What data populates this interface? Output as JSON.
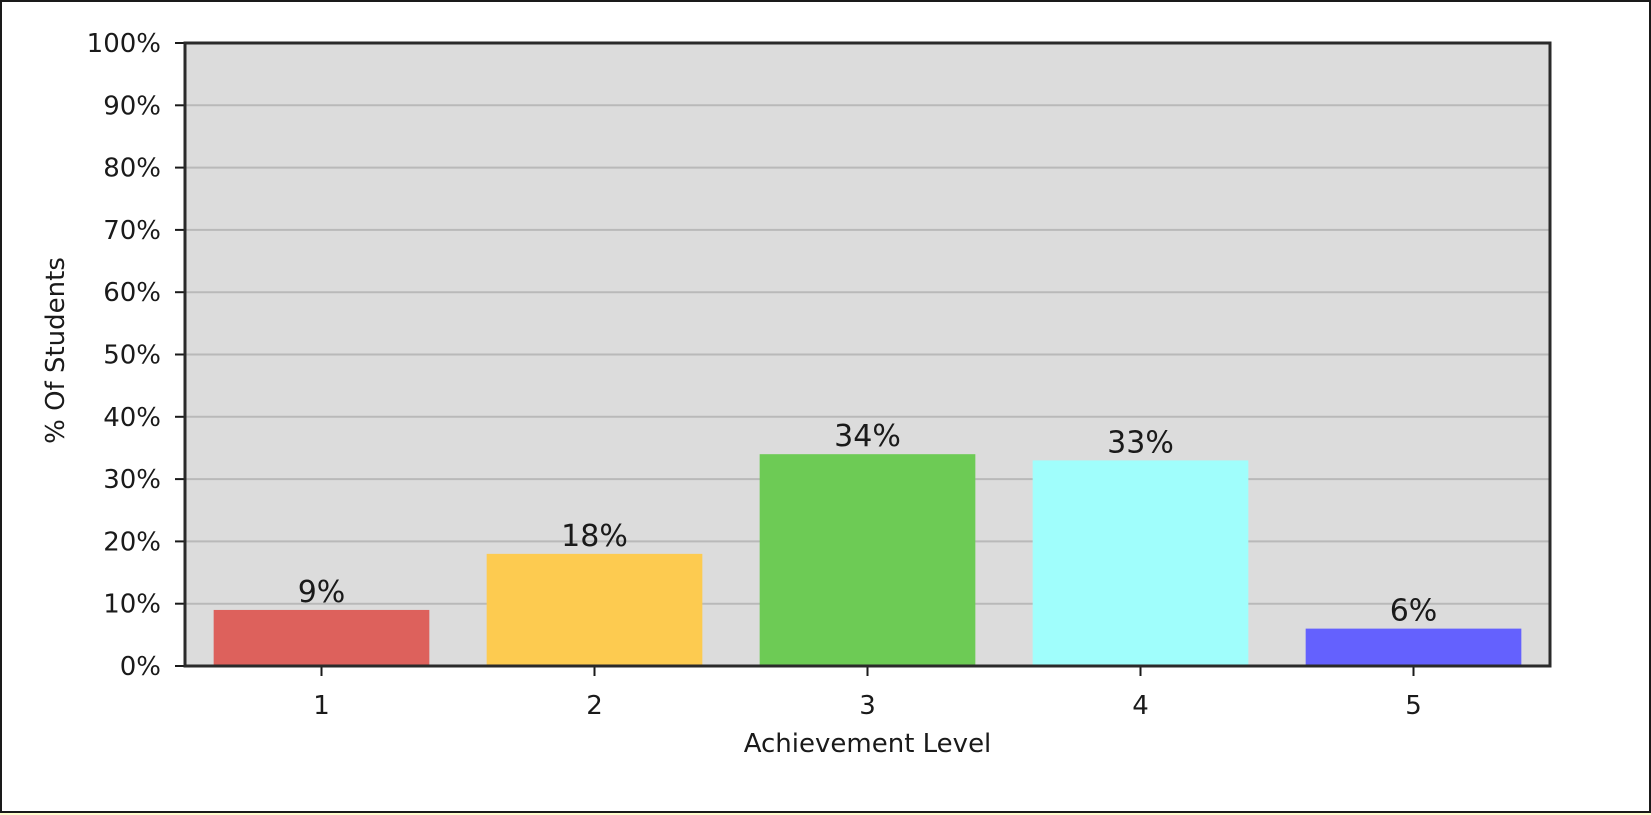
{
  "chart_data": {
    "type": "bar",
    "title": "",
    "xlabel": "Achievement Level",
    "ylabel": "% Of Students",
    "categories": [
      "1",
      "2",
      "3",
      "4",
      "5"
    ],
    "values": [
      9,
      18,
      34,
      33,
      6
    ],
    "value_labels": [
      "9%",
      "18%",
      "34%",
      "33%",
      "6%"
    ],
    "colors": [
      "#dd615c",
      "#fdcb50",
      "#6dcb55",
      "#a0fefc",
      "#6461fe"
    ],
    "ylim": [
      0,
      100
    ],
    "yticks": [
      0,
      10,
      20,
      30,
      40,
      50,
      60,
      70,
      80,
      90,
      100
    ],
    "ytick_labels": [
      "0%",
      "10%",
      "20%",
      "30%",
      "40%",
      "50%",
      "60%",
      "70%",
      "80%",
      "90%",
      "100%"
    ],
    "grid": true,
    "legend": "none",
    "plot_background": "#dcdcdc",
    "outer_background": "#fffccc"
  }
}
